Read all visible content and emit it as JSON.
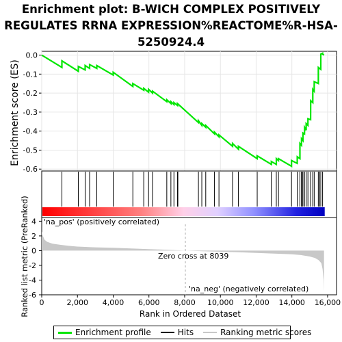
{
  "title_lines": [
    "Enrichment plot: B-WICH COMPLEX POSITIVELY",
    "REGULATES RRNA EXPRESSION%REACTOME%R-HSA-",
    "5250924.4"
  ],
  "colors": {
    "es_line": "#00e600",
    "hits": "#000000",
    "metric_fill": "#c8c8c8",
    "pos_bar": "#ff0000",
    "neg_bar": "#0000ff",
    "zero_line": "#aaaaaa"
  },
  "chart_data": [
    {
      "type": "line",
      "name": "enrichment-score",
      "ylabel": "Enrichment score (ES)",
      "xlim": [
        0,
        16500
      ],
      "ylim": [
        -0.61,
        0.02
      ],
      "yticks": [
        0.0,
        -0.1,
        -0.2,
        -0.3,
        -0.4,
        -0.5,
        -0.6
      ],
      "ytick_labels": [
        "0.0",
        "-0.1",
        "-0.2",
        "-0.3",
        "-0.4",
        "-0.5",
        "-0.6"
      ],
      "grid": true,
      "series": [
        {
          "name": "Enrichment profile",
          "x": [
            0,
            1130,
            1131,
            2050,
            2051,
            2430,
            2431,
            2680,
            2681,
            3080,
            3081,
            4000,
            4001,
            5100,
            5101,
            5710,
            5711,
            5980,
            5981,
            6200,
            6201,
            7000,
            7001,
            7230,
            7231,
            7400,
            7401,
            7600,
            7601,
            8770,
            8771,
            8960,
            8961,
            9180,
            9181,
            9670,
            9671,
            9920,
            9921,
            10680,
            10681,
            11010,
            11011,
            12060,
            12061,
            12850,
            12851,
            13130,
            13131,
            13250,
            13251,
            13980,
            13981,
            14300,
            14301,
            14450,
            14451,
            14540,
            14541,
            14620,
            14621,
            14710,
            14711,
            14800,
            14801,
            14900,
            14901,
            15050,
            15051,
            15170,
            15171,
            15250,
            15251,
            15480,
            15481,
            15620,
            15621,
            15720,
            15721,
            15800
          ],
          "y": [
            0.0,
            -0.065,
            -0.03,
            -0.085,
            -0.06,
            -0.078,
            -0.055,
            -0.07,
            -0.05,
            -0.07,
            -0.055,
            -0.105,
            -0.09,
            -0.165,
            -0.15,
            -0.185,
            -0.175,
            -0.195,
            -0.18,
            -0.2,
            -0.19,
            -0.245,
            -0.235,
            -0.255,
            -0.245,
            -0.26,
            -0.25,
            -0.265,
            -0.255,
            -0.355,
            -0.345,
            -0.37,
            -0.36,
            -0.38,
            -0.37,
            -0.415,
            -0.405,
            -0.43,
            -0.42,
            -0.48,
            -0.465,
            -0.495,
            -0.48,
            -0.545,
            -0.53,
            -0.575,
            -0.56,
            -0.575,
            -0.545,
            -0.555,
            -0.545,
            -0.585,
            -0.555,
            -0.57,
            -0.535,
            -0.545,
            -0.465,
            -0.475,
            -0.44,
            -0.45,
            -0.41,
            -0.415,
            -0.38,
            -0.395,
            -0.36,
            -0.37,
            -0.335,
            -0.34,
            -0.24,
            -0.25,
            -0.18,
            -0.19,
            -0.14,
            -0.15,
            -0.065,
            -0.075,
            0.005,
            0.01,
            0.005,
            0.0
          ]
        }
      ]
    },
    {
      "type": "rug",
      "name": "hits",
      "positions": [
        1130,
        2050,
        2430,
        2680,
        3080,
        4000,
        5100,
        5710,
        5980,
        6200,
        7000,
        7230,
        7400,
        7600,
        7620,
        8770,
        8960,
        9180,
        9670,
        9920,
        10680,
        11010,
        12060,
        12850,
        13130,
        13250,
        13980,
        14300,
        14450,
        14540,
        14570,
        14620,
        14710,
        14800,
        14900,
        15050,
        15170,
        15250,
        15480,
        15560,
        15620,
        15720
      ]
    },
    {
      "type": "area",
      "name": "ranked-list-metric",
      "ylabel": "Ranked list metric (PreRanked)",
      "xlabel": "Rank in Ordered Dataset",
      "xlim": [
        0,
        16500
      ],
      "ylim": [
        -6,
        4.5
      ],
      "xticks": [
        0,
        2000,
        4000,
        6000,
        8000,
        10000,
        12000,
        14000,
        16000
      ],
      "xtick_labels": [
        "0",
        "2,000",
        "4,000",
        "6,000",
        "8,000",
        "10,000",
        "12,000",
        "14,000",
        "16,000"
      ],
      "yticks": [
        4,
        2,
        0,
        -2,
        -4,
        -6
      ],
      "ytick_labels": [
        "4",
        "2",
        "0",
        "-2",
        "-4",
        "-6"
      ],
      "x": [
        0,
        50,
        150,
        300,
        600,
        1000,
        1500,
        2000,
        3000,
        4000,
        5000,
        6000,
        7000,
        8039,
        9000,
        10000,
        11000,
        12000,
        13000,
        14000,
        14500,
        15000,
        15300,
        15500,
        15650,
        15720,
        15780,
        15800
      ],
      "values": [
        2.6,
        2.1,
        1.5,
        1.2,
        0.95,
        0.8,
        0.65,
        0.55,
        0.45,
        0.38,
        0.3,
        0.2,
        0.12,
        0.0,
        -0.08,
        -0.15,
        -0.22,
        -0.3,
        -0.4,
        -0.5,
        -0.6,
        -0.8,
        -1.0,
        -1.3,
        -1.7,
        -2.5,
        -4.0,
        -5.6
      ],
      "zero_cross_label": "Zero cross at 8039",
      "zero_cross_x": 8039,
      "pos_label": "'na_pos' (positively correlated)",
      "neg_label": "'na_neg' (negatively correlated)"
    }
  ],
  "legend": {
    "items": [
      {
        "label": "Enrichment profile",
        "color": "#00e600"
      },
      {
        "label": "Hits",
        "color": "#000000"
      },
      {
        "label": "Ranking metric scores",
        "color": "#c8c8c8"
      }
    ]
  }
}
